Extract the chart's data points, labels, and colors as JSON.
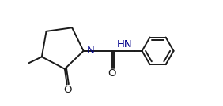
{
  "bg_color": "#ffffff",
  "line_color": "#1a1a1a",
  "N_color": "#00008b",
  "O_color": "#1a1a1a",
  "line_width": 1.4,
  "font_size": 9.5,
  "label_N": "N",
  "label_O1": "O",
  "label_O2": "O",
  "label_NH": "HN",
  "figsize": [
    2.82,
    1.35
  ],
  "dpi": 100
}
